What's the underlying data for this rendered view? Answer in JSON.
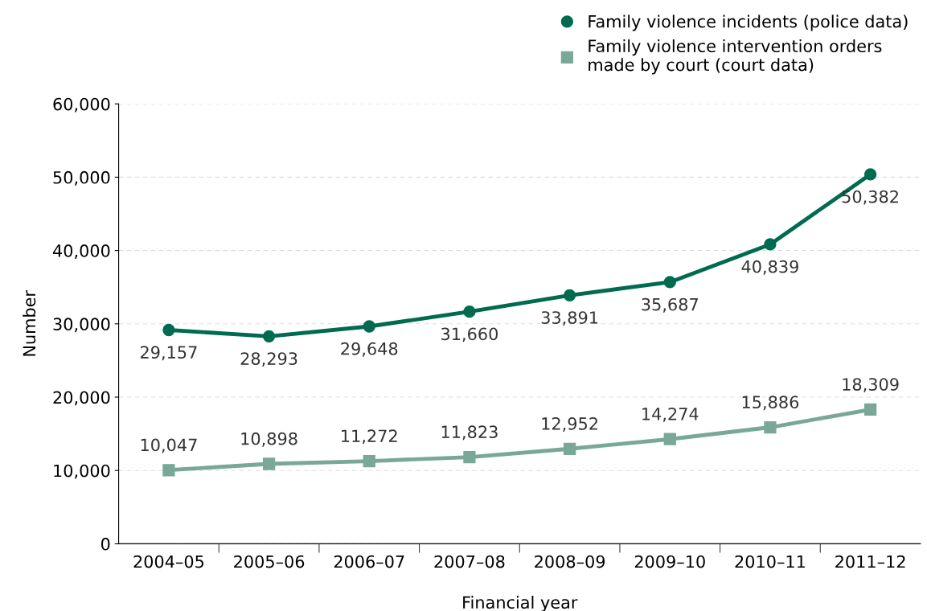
{
  "chart_data": {
    "type": "line",
    "xlabel": "Financial year",
    "ylabel": "Number",
    "categories": [
      "2004–05",
      "2005–06",
      "2006–07",
      "2007–08",
      "2008–09",
      "2009–10",
      "2010–11",
      "2011–12"
    ],
    "series": [
      {
        "name": "Family violence incidents (police data)",
        "color": "#006b4f",
        "marker": "circle",
        "values": [
          29157,
          28293,
          29648,
          31660,
          33891,
          35687,
          40839,
          50382
        ],
        "value_labels": [
          "29,157",
          "28,293",
          "29,648",
          "31,660",
          "33,891",
          "35,687",
          "40,839",
          "50,382"
        ]
      },
      {
        "name": "Family violence intervention orders\nmade by court (court data)",
        "color": "#7aa898",
        "marker": "square",
        "values": [
          10047,
          10898,
          11272,
          11823,
          12952,
          14274,
          15886,
          18309
        ],
        "value_labels": [
          "10,047",
          "10,898",
          "11,272",
          "11,823",
          "12,952",
          "14,274",
          "15,886",
          "18,309"
        ]
      }
    ],
    "ylim": [
      0,
      60000
    ],
    "yticks": [
      0,
      {
        "value": 10000,
        "label": "10,000"
      },
      {
        "value": 20000,
        "label": "20,000"
      },
      {
        "value": 30000,
        "label": "30,000"
      },
      {
        "value": 40000,
        "label": "40,000"
      },
      {
        "value": 50000,
        "label": "50,000"
      },
      {
        "value": 60000,
        "label": "60,000"
      }
    ],
    "grid": "y",
    "legend": "top right",
    "line_style": "solid"
  }
}
